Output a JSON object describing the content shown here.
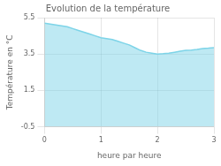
{
  "chart_data": {
    "type": "area",
    "title": "Evolution de la température",
    "xlabel": "heure par heure",
    "ylabel": "Température en °C",
    "x": [
      0,
      0.1,
      0.2,
      0.3,
      0.4,
      0.5,
      0.6,
      0.7,
      0.8,
      0.9,
      1.0,
      1.1,
      1.2,
      1.3,
      1.4,
      1.5,
      1.6,
      1.7,
      1.8,
      1.9,
      2.0,
      2.1,
      2.2,
      2.3,
      2.4,
      2.5,
      2.6,
      2.7,
      2.8,
      2.9,
      3.0
    ],
    "values": [
      5.2,
      5.15,
      5.1,
      5.05,
      5.0,
      4.9,
      4.8,
      4.7,
      4.6,
      4.5,
      4.4,
      4.35,
      4.3,
      4.2,
      4.1,
      4.0,
      3.85,
      3.7,
      3.6,
      3.55,
      3.5,
      3.52,
      3.55,
      3.6,
      3.65,
      3.7,
      3.72,
      3.75,
      3.8,
      3.82,
      3.85
    ],
    "color": "#7dd4e8",
    "xlim": [
      0,
      3
    ],
    "xticks": [
      0,
      1,
      2,
      3
    ],
    "ylim": [
      -0.5,
      5.5
    ],
    "yticks": [
      -0.5,
      1.5,
      3.5,
      5.5
    ],
    "grid": true
  }
}
